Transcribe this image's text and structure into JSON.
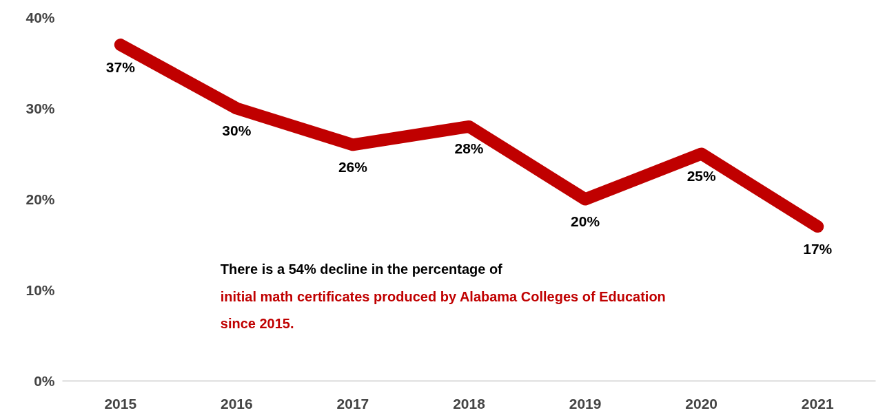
{
  "chart_data": {
    "type": "line",
    "categories": [
      "2015",
      "2016",
      "2017",
      "2018",
      "2019",
      "2020",
      "2021"
    ],
    "series": [
      {
        "color": "#c00000",
        "values": [
          37,
          30,
          26,
          28,
          20,
          25,
          17
        ],
        "value_labels": [
          "37%",
          "30%",
          "26%",
          "28%",
          "20%",
          "25%",
          "17%"
        ]
      }
    ],
    "ylim": [
      0,
      40
    ],
    "yticks": [
      {
        "value": 0,
        "label": "0%"
      },
      {
        "value": 10,
        "label": "10%"
      },
      {
        "value": 20,
        "label": "20%"
      },
      {
        "value": 30,
        "label": "30%"
      },
      {
        "value": 40,
        "label": "40%"
      }
    ],
    "grid": false,
    "line_style": "solid",
    "annotations": [
      "There is a 54% decline in the percentage of",
      "initial math certificates produced by Alabama Colleges of Education since 2015."
    ]
  }
}
